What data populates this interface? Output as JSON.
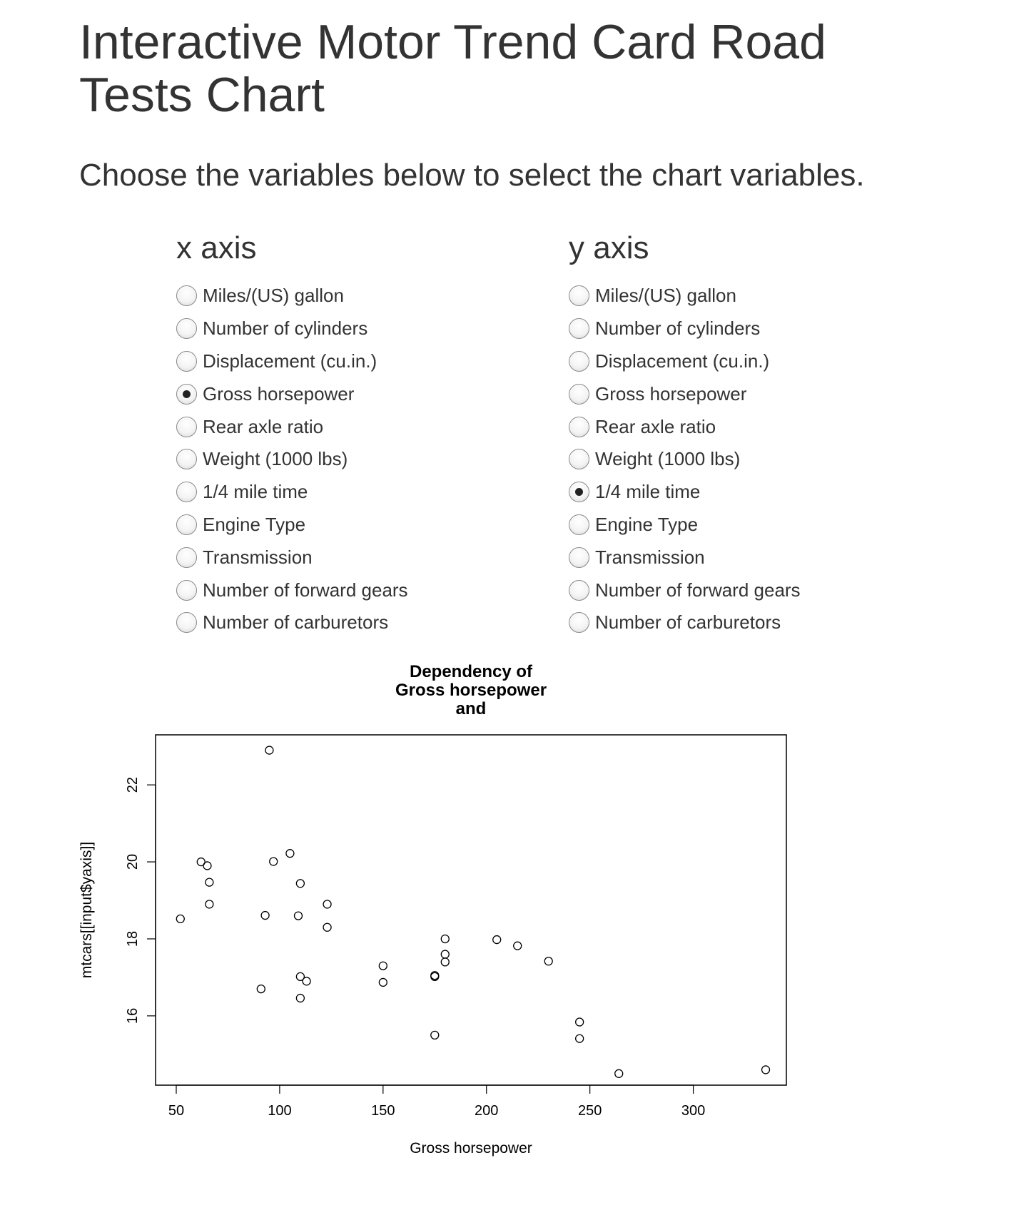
{
  "page": {
    "title": "Interactive Motor Trend Card Road Tests Chart",
    "subtitle": "Choose the variables below to select the chart variables."
  },
  "x_axis_panel": {
    "heading": "x axis",
    "selected": "Gross horsepower",
    "options": [
      "Miles/(US) gallon",
      "Number of cylinders",
      "Displacement (cu.in.)",
      "Gross horsepower",
      "Rear axle ratio",
      "Weight (1000 lbs)",
      "1/4 mile time",
      "Engine Type",
      "Transmission",
      "Number of forward gears",
      "Number of carburetors"
    ]
  },
  "y_axis_panel": {
    "heading": "y axis",
    "selected": "1/4 mile time",
    "options": [
      "Miles/(US) gallon",
      "Number of cylinders",
      "Displacement (cu.in.)",
      "Gross horsepower",
      "Rear axle ratio",
      "Weight (1000 lbs)",
      "1/4 mile time",
      "Engine Type",
      "Transmission",
      "Number of forward gears",
      "Number of carburetors"
    ]
  },
  "chart_data": {
    "type": "scatter",
    "title_lines": [
      "Dependency of",
      "Gross horsepower",
      "and"
    ],
    "xlabel": "Gross horsepower",
    "ylabel": "mtcars[[input$yaxis]]",
    "xlim": [
      40,
      345
    ],
    "ylim": [
      14.2,
      23.3
    ],
    "xticks": [
      50,
      100,
      150,
      200,
      250,
      300
    ],
    "yticks": [
      16,
      18,
      20,
      22
    ],
    "marker": "open-circle",
    "points": [
      {
        "x": 110,
        "y": 16.46
      },
      {
        "x": 110,
        "y": 17.02
      },
      {
        "x": 93,
        "y": 18.61
      },
      {
        "x": 110,
        "y": 19.44
      },
      {
        "x": 175,
        "y": 17.02
      },
      {
        "x": 105,
        "y": 20.22
      },
      {
        "x": 245,
        "y": 15.84
      },
      {
        "x": 62,
        "y": 20.0
      },
      {
        "x": 95,
        "y": 22.9
      },
      {
        "x": 123,
        "y": 18.3
      },
      {
        "x": 123,
        "y": 18.9
      },
      {
        "x": 180,
        "y": 17.4
      },
      {
        "x": 180,
        "y": 17.6
      },
      {
        "x": 180,
        "y": 18.0
      },
      {
        "x": 205,
        "y": 17.98
      },
      {
        "x": 215,
        "y": 17.82
      },
      {
        "x": 230,
        "y": 17.42
      },
      {
        "x": 66,
        "y": 19.47
      },
      {
        "x": 52,
        "y": 18.52
      },
      {
        "x": 65,
        "y": 19.9
      },
      {
        "x": 97,
        "y": 20.01
      },
      {
        "x": 150,
        "y": 16.87
      },
      {
        "x": 150,
        "y": 17.3
      },
      {
        "x": 245,
        "y": 15.41
      },
      {
        "x": 175,
        "y": 17.05
      },
      {
        "x": 66,
        "y": 18.9
      },
      {
        "x": 91,
        "y": 16.7
      },
      {
        "x": 113,
        "y": 16.9
      },
      {
        "x": 264,
        "y": 14.5
      },
      {
        "x": 175,
        "y": 15.5
      },
      {
        "x": 335,
        "y": 14.6
      },
      {
        "x": 109,
        "y": 18.6
      }
    ]
  }
}
